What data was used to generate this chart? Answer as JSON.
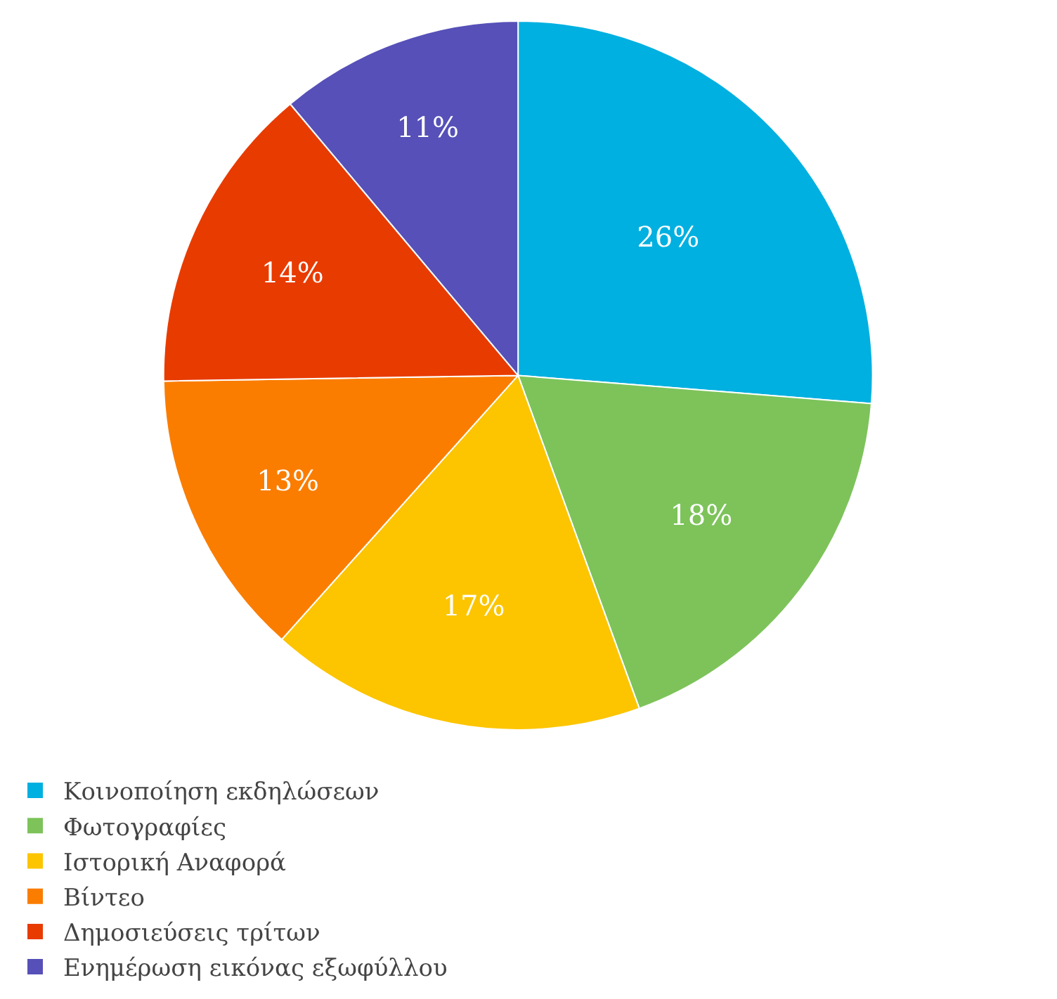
{
  "chart_data": {
    "type": "pie",
    "categories": [
      "Κοινοποίηση εκδηλώσεων",
      "Φωτογραφίες",
      "Ιστορική Αναφορά",
      "Βίντεο",
      "Δημοσιεύσεις τρίτων",
      "Ενημέρωση εικόνας εξωφύλλου"
    ],
    "values": [
      26,
      18,
      17,
      13,
      14,
      11
    ],
    "colors": [
      "#00b0e0",
      "#7dc35a",
      "#fcc500",
      "#fa7d00",
      "#e83b00",
      "#5650b8"
    ],
    "value_labels": [
      "26%",
      "18%",
      "17%",
      "13%",
      "14%",
      "11%"
    ],
    "legend": "bottom"
  }
}
